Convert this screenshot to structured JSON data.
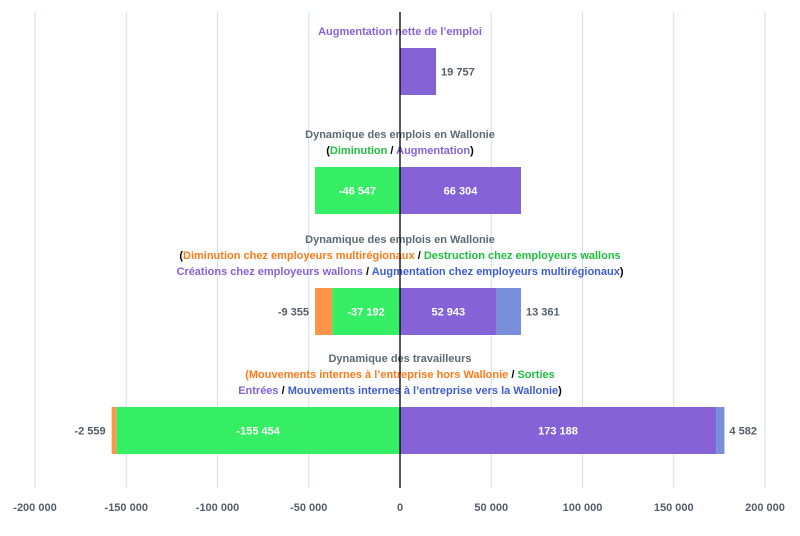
{
  "chart_data": {
    "type": "bar",
    "orientation": "horizontal",
    "stacked": true,
    "xlim": [
      -200000,
      200000
    ],
    "xticks": [
      -200000,
      -150000,
      -100000,
      -50000,
      0,
      50000,
      100000,
      150000,
      200000
    ],
    "xtick_labels": [
      "-200 000",
      "-150 000",
      "-100 000",
      "-50 000",
      "0",
      "50 000",
      "100 000",
      "150 000",
      "200 000"
    ],
    "grid": "vertical",
    "colors": {
      "purple": "#8563d6",
      "green": "#36ee64",
      "orange": "#ff9548",
      "blue": "#7a8fda",
      "title": "#5d6a72",
      "dark_orange": "#ff7a1a",
      "dark_green": "#1fbf3f",
      "dark_blue": "#3e5ecf",
      "axis": "#000000",
      "grid": "#cfe3e8"
    },
    "groups": [
      {
        "title_lines": [
          [
            {
              "text": "Augmentation nette de l’emploi",
              "color": "purple"
            }
          ]
        ],
        "segments": [
          {
            "value": 19757,
            "label": "19 757",
            "color": "purple",
            "label_pos": "outside"
          }
        ]
      },
      {
        "title_lines": [
          [
            {
              "text": "Dynamique des emplois en Wallonie",
              "color": "title"
            }
          ],
          [
            {
              "text": "(",
              "color": "axis"
            },
            {
              "text": "Diminution",
              "color": "dark_green"
            },
            {
              "text": " / ",
              "color": "axis"
            },
            {
              "text": "Augmentation",
              "color": "purple"
            },
            {
              "text": ")",
              "color": "axis"
            }
          ]
        ],
        "segments": [
          {
            "value": -46547,
            "label": "-46 547",
            "color": "green",
            "label_pos": "inside"
          },
          {
            "value": 66304,
            "label": "66 304",
            "color": "purple",
            "label_pos": "inside"
          }
        ]
      },
      {
        "title_lines": [
          [
            {
              "text": "Dynamique des emplois en Wallonie",
              "color": "title"
            }
          ],
          [
            {
              "text": "(",
              "color": "axis"
            },
            {
              "text": "Diminution chez employeurs multirégionaux",
              "color": "dark_orange"
            },
            {
              "text": " / ",
              "color": "axis"
            },
            {
              "text": "Destruction chez employeurs wallons",
              "color": "dark_green"
            }
          ],
          [
            {
              "text": "Créations chez employeurs wallons",
              "color": "purple"
            },
            {
              "text": " / ",
              "color": "axis"
            },
            {
              "text": "Augmentation chez employeurs multirégionaux",
              "color": "dark_blue"
            },
            {
              "text": ")",
              "color": "axis"
            }
          ]
        ],
        "segments": [
          {
            "value": -37192,
            "label": "-37 192",
            "color": "green",
            "label_pos": "inside"
          },
          {
            "value": -9355,
            "label": "-9 355",
            "color": "orange",
            "label_pos": "outside"
          },
          {
            "value": 52943,
            "label": "52 943",
            "color": "purple",
            "label_pos": "inside"
          },
          {
            "value": 13361,
            "label": "13 361",
            "color": "blue",
            "label_pos": "outside"
          }
        ]
      },
      {
        "title_lines": [
          [
            {
              "text": "Dynamique des travailleurs",
              "color": "title"
            }
          ],
          [
            {
              "text": "(Mouvements internes à l’entreprise hors Wallonie",
              "color": "dark_orange"
            },
            {
              "text": " / ",
              "color": "axis"
            },
            {
              "text": "Sorties",
              "color": "dark_green"
            }
          ],
          [
            {
              "text": "Entrées",
              "color": "purple"
            },
            {
              "text": " / ",
              "color": "axis"
            },
            {
              "text": "Mouvements internes à l’entreprise vers la Wallonie",
              "color": "dark_blue"
            },
            {
              "text": ")",
              "color": "axis"
            }
          ]
        ],
        "segments": [
          {
            "value": -155454,
            "label": "-155 454",
            "color": "green",
            "label_pos": "inside"
          },
          {
            "value": -2559,
            "label": "-2 559",
            "color": "orange",
            "label_pos": "outside"
          },
          {
            "value": 173188,
            "label": "173 188",
            "color": "purple",
            "label_pos": "inside"
          },
          {
            "value": 4582,
            "label": "4 582",
            "color": "blue",
            "label_pos": "outside"
          }
        ]
      }
    ]
  }
}
